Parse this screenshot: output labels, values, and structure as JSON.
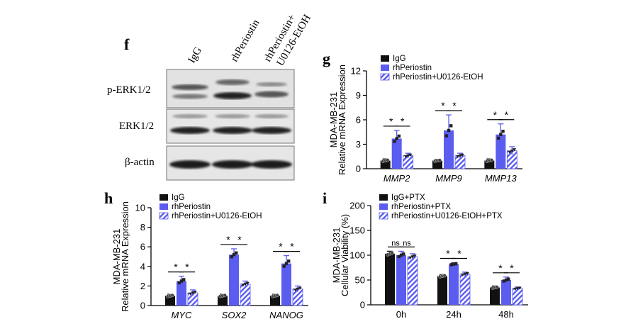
{
  "colors": {
    "black": "#111111",
    "blue": "#5b5cf0",
    "hatch": "#5b5cf0",
    "blot_bg": "#e4e4e4",
    "band": "#2a2a2a"
  },
  "panel_f": {
    "label": "f",
    "lanes": [
      "IgG",
      "rhPeriostin",
      "rhPeriostin+",
      "U0126-EtOH"
    ],
    "rows": [
      "p-ERK1/2",
      "ERK1/2",
      "β-actin"
    ]
  },
  "chart_data": [
    {
      "id": "g",
      "panel_label": "g",
      "type": "bar",
      "ylabel": "Relative mRNA Expression",
      "ylabel2": "MDA-MB-231",
      "categories": [
        "MMP2",
        "MMP9",
        "MMP13"
      ],
      "ylim": [
        0,
        12
      ],
      "yticks": [
        0,
        3,
        6,
        9,
        12
      ],
      "legend_position": "top-left",
      "series": [
        {
          "name": "IgG",
          "values": [
            1.0,
            1.0,
            1.0
          ],
          "errors": [
            0.2,
            0.15,
            0.2
          ]
        },
        {
          "name": "rhPeriostin",
          "values": [
            3.7,
            4.7,
            4.2
          ],
          "errors": [
            1.0,
            1.9,
            1.3
          ]
        },
        {
          "name": "rhPeriostin+U0126-EtOH",
          "values": [
            1.6,
            1.6,
            2.2
          ],
          "errors": [
            0.3,
            0.3,
            0.5
          ]
        }
      ],
      "significance": [
        [
          "*",
          "*"
        ],
        [
          "*",
          "*"
        ],
        [
          "*",
          "*"
        ]
      ]
    },
    {
      "id": "h",
      "panel_label": "h",
      "type": "bar",
      "ylabel": "Relative mRNA Expression",
      "ylabel2": "MDA-MB-231",
      "categories": [
        "MYC",
        "SOX2",
        "NANOG"
      ],
      "ylim": [
        0,
        10
      ],
      "yticks": [
        0,
        2,
        4,
        6,
        8,
        10
      ],
      "legend_position": "top-left",
      "series": [
        {
          "name": "IgG",
          "values": [
            1.0,
            1.0,
            1.0
          ],
          "errors": [
            0.15,
            0.15,
            0.15
          ]
        },
        {
          "name": "rhPeriostin",
          "values": [
            2.5,
            5.2,
            4.3
          ],
          "errors": [
            0.5,
            0.6,
            0.8
          ]
        },
        {
          "name": "rhPeriostin+U0126-EtOH",
          "values": [
            1.3,
            2.2,
            1.7
          ],
          "errors": [
            0.3,
            0.3,
            0.3
          ]
        }
      ],
      "significance": [
        [
          "*",
          "*"
        ],
        [
          "*",
          "*"
        ],
        [
          "*",
          "*"
        ]
      ]
    },
    {
      "id": "i",
      "panel_label": "i",
      "type": "bar",
      "ylabel": "Cellular Viability (%)",
      "ylabel2": "MDA-MB-231",
      "categories": [
        "0h",
        "24h",
        "48h"
      ],
      "ylim": [
        0,
        200
      ],
      "yticks": [
        0,
        50,
        100,
        150,
        200
      ],
      "legend_position": "top-left",
      "series": [
        {
          "name": "IgG+PTX",
          "values": [
            103,
            58,
            35
          ],
          "errors": [
            5,
            3,
            3
          ]
        },
        {
          "name": "rhPeriostin+PTX",
          "values": [
            100,
            82,
            50
          ],
          "errors": [
            8,
            3,
            6
          ]
        },
        {
          "name": "rhPeriostin+U0126-EtOH+PTX",
          "values": [
            97,
            62,
            33
          ],
          "errors": [
            6,
            4,
            3
          ]
        }
      ],
      "significance": [
        [
          "ns",
          "ns"
        ],
        [
          "*",
          "*"
        ],
        [
          "*",
          "*"
        ]
      ]
    }
  ]
}
